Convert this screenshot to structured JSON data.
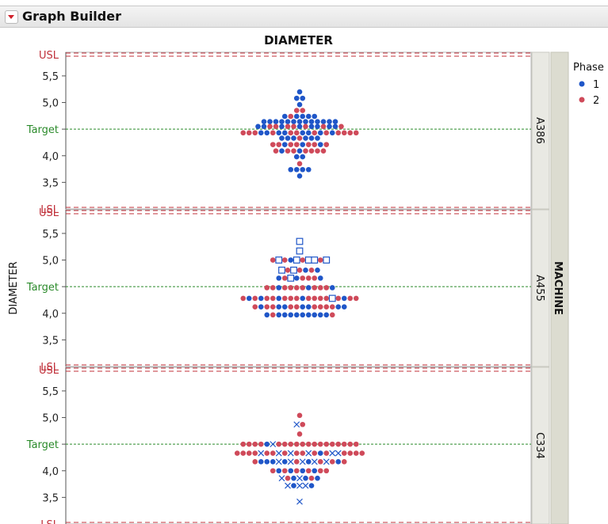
{
  "app": {
    "title": "Graph Builder"
  },
  "chart_data": {
    "type": "scatter",
    "subtype": "stacked-dot-plot",
    "title": "DIAMETER",
    "ylabel": "DIAMETER",
    "group_label": "MACHINE",
    "ylim": [
      3.05,
      5.95
    ],
    "y_ticks": [
      3.5,
      4.0,
      4.5,
      5.0,
      5.5
    ],
    "y_tick_labels": [
      "3,5",
      "4,0",
      "",
      "5,0",
      "5,5"
    ],
    "reference_lines": [
      {
        "label": "USL",
        "value": 5.9,
        "color": "#c0303a",
        "style": "dashed-double"
      },
      {
        "label": "Target",
        "value": 4.5,
        "color": "#2a8a2a",
        "style": "dotted"
      },
      {
        "label": "LSL",
        "value": 3.0,
        "color": "#c0303a",
        "style": "dashed-double"
      }
    ],
    "legend": {
      "title": "Phase",
      "position": "right",
      "entries": [
        {
          "name": "1",
          "color": "#1f56c8"
        },
        {
          "name": "2",
          "color": "#cf4a5a"
        }
      ]
    },
    "panels": [
      {
        "name": "A386",
        "rows": [
          {
            "y": 5.2,
            "seq": [
              "1"
            ]
          },
          {
            "y": 5.08,
            "seq": [
              "1",
              "1"
            ]
          },
          {
            "y": 4.96,
            "seq": [
              "1"
            ]
          },
          {
            "y": 4.85,
            "seq": [
              "2",
              "2"
            ]
          },
          {
            "y": 4.74,
            "seq": [
              "1",
              "2",
              "1",
              "1",
              "1",
              "1"
            ]
          },
          {
            "y": 4.64,
            "seq": [
              "1",
              "1",
              "1",
              "1",
              "1",
              "1",
              "1",
              "1",
              "1",
              "1",
              "1",
              "1",
              "1"
            ]
          },
          {
            "y": 4.55,
            "seq": [
              "1",
              "1",
              "2",
              "2",
              "1",
              "2",
              "2",
              "1",
              "2",
              "1",
              "1",
              "2",
              "1",
              "1",
              "2"
            ]
          },
          {
            "y": 4.43,
            "seq": [
              "2",
              "2",
              "2",
              "1",
              "1",
              "2",
              "1",
              "1",
              "2",
              "2",
              "1",
              "1",
              "2",
              "1",
              "2",
              "1",
              "2",
              "2",
              "2",
              "2"
            ]
          },
          {
            "y": 4.33,
            "seq": [
              "1",
              "1",
              "1",
              "2",
              "1",
              "1",
              "1"
            ]
          },
          {
            "y": 4.21,
            "seq": [
              "2",
              "2",
              "1",
              "2",
              "2",
              "1",
              "2",
              "2",
              "1",
              "2"
            ]
          },
          {
            "y": 4.09,
            "seq": [
              "2",
              "1",
              "2",
              "2",
              "1",
              "2",
              "2",
              "2",
              "2"
            ]
          },
          {
            "y": 3.98,
            "seq": [
              "1",
              "1"
            ]
          },
          {
            "y": 3.85,
            "seq": [
              "2"
            ]
          },
          {
            "y": 3.74,
            "seq": [
              "1",
              "1",
              "1",
              "1"
            ]
          },
          {
            "y": 3.62,
            "seq": [
              "1"
            ]
          }
        ]
      },
      {
        "name": "A455",
        "rows": [
          {
            "y": 5.35,
            "seq": [
              "1s"
            ]
          },
          {
            "y": 5.17,
            "seq": [
              "1s"
            ]
          },
          {
            "y": 5.0,
            "seq": [
              "2",
              "1s",
              "2",
              "1",
              "1s",
              "2",
              "1s",
              "1s",
              "2",
              "1s"
            ]
          },
          {
            "y": 4.81,
            "seq": [
              "1s",
              "2",
              "1s",
              "2",
              "1",
              "2",
              "1"
            ]
          },
          {
            "y": 4.66,
            "seq": [
              "1",
              "2",
              "1s",
              "1",
              "2",
              "2",
              "2",
              "1"
            ]
          },
          {
            "y": 4.48,
            "seq": [
              "2",
              "2",
              "1",
              "2",
              "2",
              "2",
              "2",
              "1",
              "2",
              "2",
              "2",
              "1"
            ]
          },
          {
            "y": 4.28,
            "seq": [
              "2",
              "1",
              "2",
              "1",
              "2",
              "2",
              "1",
              "2",
              "2",
              "2",
              "1",
              "2",
              "2",
              "2",
              "2",
              "1s",
              "2",
              "1",
              "2",
              "2"
            ]
          },
          {
            "y": 4.12,
            "seq": [
              "2",
              "1",
              "2",
              "2",
              "1",
              "1",
              "2",
              "2",
              "1",
              "1",
              "2",
              "2",
              "2",
              "2",
              "1",
              "1"
            ]
          },
          {
            "y": 3.97,
            "seq": [
              "1",
              "2",
              "1",
              "1",
              "1",
              "1",
              "1",
              "1",
              "1",
              "1",
              "1",
              "2"
            ]
          }
        ]
      },
      {
        "name": "C334",
        "rows": [
          {
            "y": 5.04,
            "seq": [
              "2"
            ]
          },
          {
            "y": 4.87,
            "seq": [
              "1x",
              "2"
            ]
          },
          {
            "y": 4.69,
            "seq": [
              "2"
            ]
          },
          {
            "y": 4.5,
            "seq": [
              "2",
              "2",
              "2",
              "2",
              "1",
              "1x",
              "2",
              "2",
              "2",
              "2",
              "2",
              "2",
              "2",
              "2",
              "2",
              "2",
              "2",
              "2",
              "2",
              "2"
            ]
          },
          {
            "y": 4.33,
            "seq": [
              "2",
              "2",
              "2",
              "2",
              "1x",
              "2",
              "2",
              "1x",
              "2",
              "1x",
              "2",
              "2",
              "1x",
              "2",
              "1",
              "2",
              "1x",
              "1x",
              "2",
              "2",
              "2",
              "2"
            ]
          },
          {
            "y": 4.17,
            "seq": [
              "2",
              "1",
              "1",
              "1",
              "1x",
              "1",
              "1x",
              "2",
              "1x",
              "1",
              "1x",
              "2",
              "1x",
              "2",
              "1",
              "2"
            ]
          },
          {
            "y": 4.0,
            "seq": [
              "2",
              "1",
              "2",
              "1",
              "2",
              "1",
              "2",
              "1",
              "2",
              "2"
            ]
          },
          {
            "y": 3.86,
            "seq": [
              "1x",
              "2",
              "1",
              "1x",
              "1",
              "2",
              "1"
            ]
          },
          {
            "y": 3.72,
            "seq": [
              "1x",
              "1",
              "1x",
              "1x",
              "1"
            ]
          },
          {
            "y": 3.42,
            "seq": [
              "1x"
            ]
          }
        ]
      }
    ]
  }
}
